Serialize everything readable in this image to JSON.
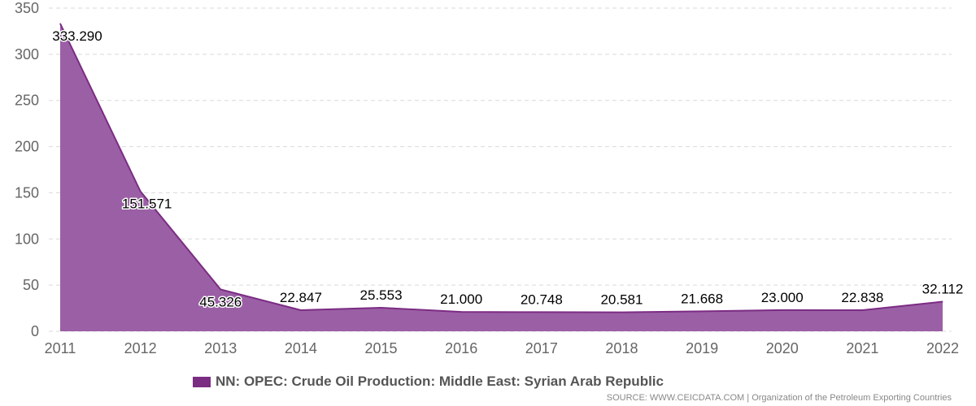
{
  "chart_data": {
    "type": "area",
    "title": "",
    "xlabel": "",
    "ylabel": "",
    "x": [
      "2011",
      "2012",
      "2013",
      "2014",
      "2015",
      "2016",
      "2017",
      "2018",
      "2019",
      "2020",
      "2021",
      "2022"
    ],
    "series": [
      {
        "name": "NN: OPEC: Crude Oil Production: Middle East: Syrian Arab Republic",
        "values": [
          333.29,
          151.571,
          45.326,
          22.847,
          25.553,
          21.0,
          20.748,
          20.581,
          21.668,
          23.0,
          22.838,
          32.112
        ],
        "labels": [
          "333.290",
          "151.571",
          "45.326",
          "22.847",
          "25.553",
          "21.000",
          "20.748",
          "20.581",
          "21.668",
          "23.000",
          "22.838",
          "32.112"
        ],
        "color": "#7b2c83"
      }
    ],
    "yticks": [
      "0",
      "50",
      "100",
      "150",
      "200",
      "250",
      "300",
      "350"
    ],
    "ylim": [
      0,
      350
    ],
    "grid": true,
    "legend": "bottom"
  },
  "source_text": "SOURCE: WWW.CEICDATA.COM | Organization of the Petroleum Exporting Countries"
}
